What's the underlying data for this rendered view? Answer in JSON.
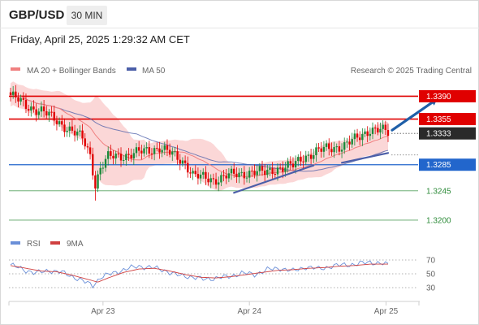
{
  "header": {
    "symbol": "GBP/USD",
    "timeframe": "30 MIN",
    "datetime": "Friday, April 25, 2025 1:29:32 AM CET"
  },
  "legend": {
    "ma20_label": "MA 20 + Bollinger Bands",
    "ma50_label": "MA 50",
    "credit": "Research © 2025 Trading Central",
    "rsi_label": "RSI",
    "rsi_ma_label": "9MA"
  },
  "colors": {
    "resistance": "#e00000",
    "support": "#2266cc",
    "target": "#2e8b3a",
    "price_badge": "#2a2a2a",
    "bull": "#1b8a3a",
    "bear": "#e00000",
    "ma20": "#f08080",
    "ma50": "#4b5ea8",
    "band": "#f9c9c9",
    "trend_arrow": "#1f5fa8",
    "rsi": "#6a8fd8",
    "rsi_ma": "#d04040"
  },
  "chart_data": {
    "type": "candlestick",
    "instrument": "GBP/USD",
    "interval": "30 MIN",
    "x_ticks": [
      "Apr 23",
      "Apr 24",
      "Apr 25"
    ],
    "ylim": [
      1.3185,
      1.3408
    ],
    "levels": [
      {
        "value": 1.339,
        "label": "1.3390",
        "kind": "resistance"
      },
      {
        "value": 1.3355,
        "label": "1.3355",
        "kind": "resistance"
      },
      {
        "value": 1.3333,
        "label": "1.3333",
        "kind": "last_price"
      },
      {
        "value": 1.3285,
        "label": "1.3285",
        "kind": "pivot"
      },
      {
        "value": 1.3245,
        "label": "1.3245",
        "kind": "support"
      },
      {
        "value": 1.32,
        "label": "1.3200",
        "kind": "support"
      }
    ],
    "close_anchors": [
      [
        0,
        1.3392
      ],
      [
        6,
        1.3375
      ],
      [
        12,
        1.3368
      ],
      [
        18,
        1.3352
      ],
      [
        22,
        1.3342
      ],
      [
        28,
        1.3325
      ],
      [
        31,
        1.33
      ],
      [
        33,
        1.3255
      ],
      [
        35,
        1.328
      ],
      [
        38,
        1.3296
      ],
      [
        45,
        1.33
      ],
      [
        52,
        1.3305
      ],
      [
        58,
        1.3312
      ],
      [
        63,
        1.33
      ],
      [
        68,
        1.3288
      ],
      [
        71,
        1.327
      ],
      [
        74,
        1.3265
      ],
      [
        79,
        1.3262
      ],
      [
        84,
        1.3268
      ],
      [
        89,
        1.327
      ],
      [
        94,
        1.3275
      ],
      [
        99,
        1.3272
      ],
      [
        104,
        1.328
      ],
      [
        110,
        1.3283
      ],
      [
        114,
        1.3297
      ],
      [
        119,
        1.3305
      ],
      [
        124,
        1.331
      ],
      [
        130,
        1.3315
      ],
      [
        135,
        1.3325
      ],
      [
        140,
        1.334
      ],
      [
        144,
        1.3338
      ],
      [
        147,
        1.3333
      ]
    ],
    "rsi": {
      "levels": [
        70,
        50,
        30
      ],
      "anchors": [
        [
          0,
          63
        ],
        [
          5,
          56
        ],
        [
          10,
          51
        ],
        [
          15,
          55
        ],
        [
          20,
          52
        ],
        [
          25,
          45
        ],
        [
          29,
          38
        ],
        [
          32,
          33
        ],
        [
          35,
          45
        ],
        [
          40,
          51
        ],
        [
          45,
          57
        ],
        [
          50,
          61
        ],
        [
          55,
          59
        ],
        [
          60,
          55
        ],
        [
          65,
          48
        ],
        [
          70,
          46
        ],
        [
          75,
          42
        ],
        [
          80,
          44
        ],
        [
          85,
          46
        ],
        [
          90,
          51
        ],
        [
          95,
          49
        ],
        [
          100,
          56
        ],
        [
          105,
          58
        ],
        [
          110,
          54
        ],
        [
          115,
          60
        ],
        [
          120,
          57
        ],
        [
          125,
          61
        ],
        [
          130,
          63
        ],
        [
          135,
          64
        ],
        [
          140,
          67
        ],
        [
          144,
          65
        ],
        [
          147,
          63
        ]
      ],
      "ma_anchors": [
        [
          0,
          62
        ],
        [
          6,
          58
        ],
        [
          12,
          54
        ],
        [
          18,
          53
        ],
        [
          24,
          48
        ],
        [
          30,
          42
        ],
        [
          34,
          38
        ],
        [
          38,
          44
        ],
        [
          44,
          52
        ],
        [
          50,
          57
        ],
        [
          56,
          58
        ],
        [
          62,
          54
        ],
        [
          68,
          49
        ],
        [
          74,
          45
        ],
        [
          80,
          44
        ],
        [
          86,
          46
        ],
        [
          92,
          49
        ],
        [
          98,
          52
        ],
        [
          104,
          55
        ],
        [
          110,
          56
        ],
        [
          116,
          58
        ],
        [
          122,
          59
        ],
        [
          128,
          61
        ],
        [
          134,
          62
        ],
        [
          140,
          64
        ],
        [
          147,
          64
        ]
      ]
    },
    "trendlines": [
      {
        "from": [
          87,
          1.3242
        ],
        "to": [
          118,
          1.3284
        ],
        "type": "support"
      },
      {
        "from": [
          129,
          1.3288
        ],
        "to": [
          147,
          1.3303
        ],
        "type": "support"
      }
    ],
    "forecast_arrow": {
      "from": [
        147,
        1.3338
      ],
      "to": [
        160,
        1.339
      ]
    }
  }
}
